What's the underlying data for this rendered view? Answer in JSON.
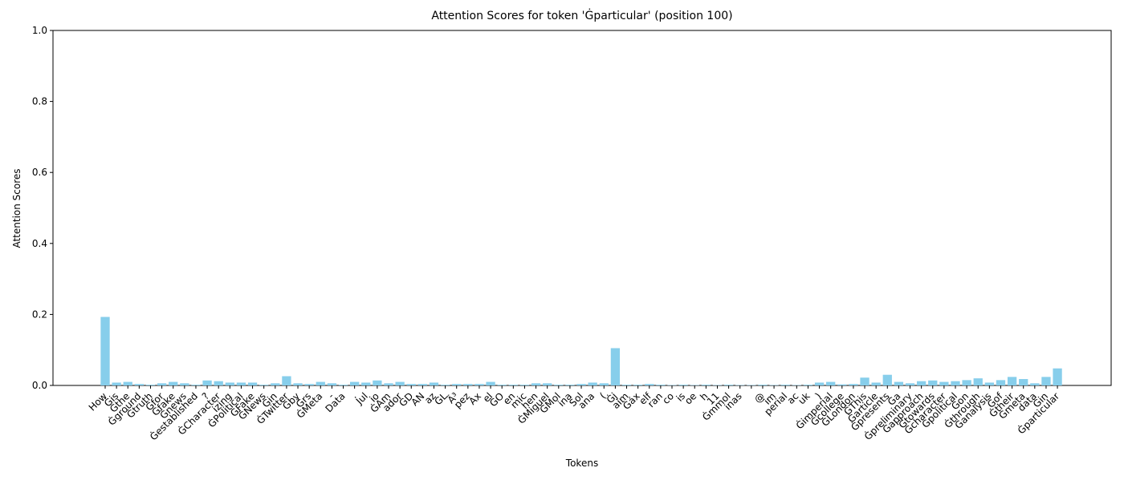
{
  "chart_data": {
    "type": "bar",
    "title": "Attention Scores for token 'Ġparticular' (position 100)",
    "x_label": "Tokens",
    "y_label": "Attention Scores",
    "color": "#87ceeb",
    "categories": [
      "How",
      "Ġis",
      "Ġthe",
      "Ġground",
      "Ġtruth",
      "Ġfor",
      "Ġfake",
      "Ġnews",
      "Ġestablished",
      "?",
      "ĠCharacter",
      "izing",
      "ĠPolitical",
      "ĠFake",
      "ĠNews",
      "Ġin",
      "ĠTwitter",
      "Ġby",
      "Ġrs",
      "ĠMeta",
      "-",
      "Data",
      ".",
      "Jul",
      "io",
      "ĠAm",
      "ador",
      "ĠD",
      "AN",
      "az",
      "ĠL",
      "Ã³",
      "pez",
      "Ax",
      "el",
      "ĠO",
      "en",
      "mic",
      "hen",
      "ĠMiguel",
      "ĠMol",
      "ina",
      "Sol",
      "ana",
      "(",
      "Ġj",
      "aim",
      "Ġáx",
      "elf",
      "ran",
      "co",
      "is",
      "oe",
      "h",
      "11",
      "Ġmmol",
      "inas",
      null,
      "@",
      "im",
      "perial",
      "ac",
      "uk",
      ")",
      "Ġimperial",
      "Ġcollege",
      "ĠLondon",
      "ĠThis",
      "Ġarticle",
      "Ġpresents",
      "Ġa",
      "Ġpreliminary",
      "Ġapproach",
      "Ġtowards",
      "Ġcharacter",
      "Ġpolitical",
      "Ġon",
      "Ġthrough",
      "Ġanalysis",
      "Ġof",
      "Ġtheir",
      "Ġmeta",
      "data",
      "Ġin",
      "Ġparticular"
    ],
    "values": [
      0.193,
      0.008,
      0.01,
      0.004,
      0.002,
      0.006,
      0.01,
      0.006,
      0.002,
      0.014,
      0.012,
      0.008,
      0.008,
      0.008,
      0.002,
      0.006,
      0.026,
      0.006,
      0.004,
      0.01,
      0.006,
      0.002,
      0.01,
      0.008,
      0.014,
      0.006,
      0.01,
      0.004,
      0.004,
      0.008,
      0.002,
      0.004,
      0.004,
      0.004,
      0.01,
      0.002,
      0.002,
      0.002,
      0.006,
      0.006,
      0.002,
      0.002,
      0.004,
      0.008,
      0.006,
      0.105,
      0.002,
      0.002,
      0.004,
      0.002,
      0.001,
      0.002,
      0.001,
      0.002,
      0.001,
      0.002,
      0.001,
      0.001,
      0.002,
      0.001,
      0.002,
      0.001,
      0.002,
      0.008,
      0.01,
      0.003,
      0.004,
      0.022,
      0.008,
      0.03,
      0.01,
      0.006,
      0.012,
      0.014,
      0.01,
      0.012,
      0.015,
      0.02,
      0.008,
      0.015,
      0.024,
      0.018,
      0.006,
      0.024,
      0.048
    ],
    "ylim": [
      0,
      1
    ],
    "yticks": [
      {
        "value": 0,
        "label": "0.0"
      },
      {
        "value": 0.2,
        "label": "0.2"
      },
      {
        "value": 0.4,
        "label": "0.4"
      },
      {
        "value": 0.6,
        "label": "0.6"
      },
      {
        "value": 0.8,
        "label": "0.8"
      },
      {
        "value": 1,
        "label": "1.0"
      }
    ],
    "grid": false
  }
}
